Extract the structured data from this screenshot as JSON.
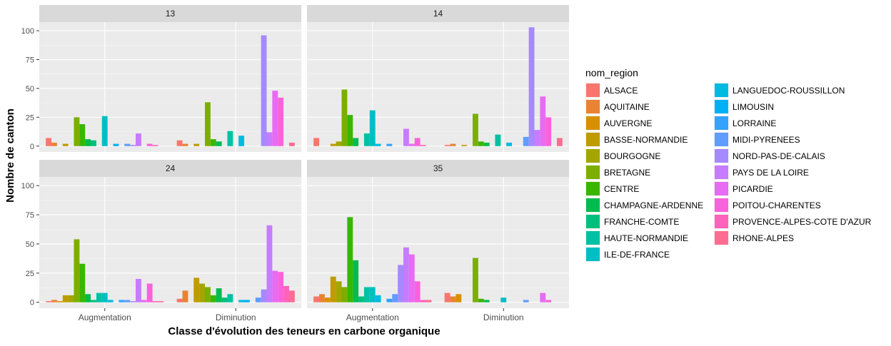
{
  "chart_data": {
    "type": "bar",
    "layout": "facet_wrap 2x2, dodged bars",
    "xlabel": "Classe d'évolution des teneurs en carbone organique",
    "ylabel": "Nombre de canton",
    "ylim": [
      0,
      105
    ],
    "yticks": [
      0,
      25,
      50,
      75,
      100
    ],
    "categories": [
      "Augmentation",
      "Diminution"
    ],
    "legend": {
      "title": "nom_region",
      "position": "right",
      "columns": 2
    },
    "grid": true,
    "regions": [
      {
        "name": "ALSACE",
        "color": "#F8766D"
      },
      {
        "name": "AQUITAINE",
        "color": "#EA8331"
      },
      {
        "name": "AUVERGNE",
        "color": "#D89000"
      },
      {
        "name": "BASSE-NORMANDIE",
        "color": "#C09B00"
      },
      {
        "name": "BOURGOGNE",
        "color": "#A3A500"
      },
      {
        "name": "BRETAGNE",
        "color": "#7CAE00"
      },
      {
        "name": "CENTRE",
        "color": "#39B600"
      },
      {
        "name": "CHAMPAGNE-ARDENNE",
        "color": "#00BB4E"
      },
      {
        "name": "FRANCHE-COMTE",
        "color": "#00BF7D"
      },
      {
        "name": "HAUTE-NORMANDIE",
        "color": "#00C1A3"
      },
      {
        "name": "ILE-DE-FRANCE",
        "color": "#00BFC4"
      },
      {
        "name": "LANGUEDOC-ROUSSILLON",
        "color": "#00BAE0"
      },
      {
        "name": "LIMOUSIN",
        "color": "#00B0F6"
      },
      {
        "name": "LORRAINE",
        "color": "#35A2FF"
      },
      {
        "name": "MIDI-PYRENEES",
        "color": "#619CFF"
      },
      {
        "name": "NORD-PAS-DE-CALAIS",
        "color": "#A58AFF"
      },
      {
        "name": "PAYS DE LA LOIRE",
        "color": "#C77CFF"
      },
      {
        "name": "PICARDIE",
        "color": "#E76BF3"
      },
      {
        "name": "POITOU-CHARENTES",
        "color": "#FA62DB"
      },
      {
        "name": "PROVENCE-ALPES-COTE D'AZUR",
        "color": "#FF62BC"
      },
      {
        "name": "RHONE-ALPES",
        "color": "#FF6C91"
      }
    ],
    "facets": [
      {
        "label": "13",
        "values": {
          "Augmentation": [
            7,
            3,
            0,
            2,
            0,
            25,
            19,
            6,
            5,
            0,
            26,
            0,
            2,
            0,
            2,
            1,
            11,
            0,
            2,
            1,
            0
          ],
          "Diminution": [
            5,
            2,
            0,
            2,
            0,
            38,
            6,
            4,
            0,
            13,
            0,
            9,
            0,
            0,
            0,
            96,
            12,
            48,
            42,
            0,
            3
          ]
        }
      },
      {
        "label": "14",
        "values": {
          "Augmentation": [
            7,
            0,
            0,
            2,
            4,
            49,
            27,
            7,
            0,
            11,
            31,
            2,
            0,
            2,
            0,
            0,
            15,
            2,
            7,
            1,
            0
          ],
          "Diminution": [
            1,
            2,
            0,
            1,
            0,
            28,
            4,
            3,
            0,
            10,
            0,
            3,
            0,
            0,
            8,
            103,
            14,
            43,
            25,
            0,
            7
          ]
        }
      },
      {
        "label": "24",
        "values": {
          "Augmentation": [
            1,
            2,
            1,
            6,
            6,
            54,
            33,
            7,
            2,
            8,
            8,
            2,
            0,
            2,
            2,
            1,
            20,
            2,
            16,
            1,
            1
          ],
          "Diminution": [
            3,
            10,
            0,
            21,
            16,
            13,
            6,
            12,
            4,
            7,
            0,
            2,
            2,
            0,
            4,
            11,
            66,
            27,
            26,
            14,
            10
          ]
        }
      },
      {
        "label": "35",
        "values": {
          "Augmentation": [
            5,
            7,
            4,
            22,
            18,
            13,
            73,
            36,
            5,
            13,
            13,
            6,
            0,
            3,
            7,
            32,
            47,
            41,
            18,
            2,
            2
          ],
          "Diminution": [
            8,
            5,
            7,
            0,
            0,
            38,
            3,
            2,
            0,
            0,
            4,
            0,
            0,
            0,
            2,
            0,
            0,
            8,
            2,
            0,
            0
          ]
        }
      }
    ]
  }
}
